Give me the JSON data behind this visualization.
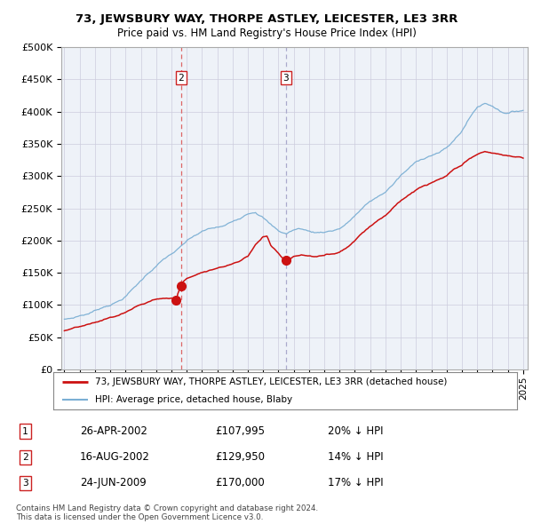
{
  "title": "73, JEWSBURY WAY, THORPE ASTLEY, LEICESTER, LE3 3RR",
  "subtitle": "Price paid vs. HM Land Registry's House Price Index (HPI)",
  "legend_line1": "73, JEWSBURY WAY, THORPE ASTLEY, LEICESTER, LE3 3RR (detached house)",
  "legend_line2": "HPI: Average price, detached house, Blaby",
  "footer1": "Contains HM Land Registry data © Crown copyright and database right 2024.",
  "footer2": "This data is licensed under the Open Government Licence v3.0.",
  "transactions": [
    {
      "num": 1,
      "date": "26-APR-2002",
      "price": "£107,995",
      "hpi": "20% ↓ HPI",
      "year": 2002.32,
      "show_in_chart": false
    },
    {
      "num": 2,
      "date": "16-AUG-2002",
      "price": "£129,950",
      "hpi": "14% ↓ HPI",
      "year": 2002.63,
      "show_in_chart": true,
      "dashed": "red"
    },
    {
      "num": 3,
      "date": "24-JUN-2009",
      "price": "£170,000",
      "hpi": "17% ↓ HPI",
      "year": 2009.48,
      "show_in_chart": true,
      "dashed": "gray"
    }
  ],
  "hpi_color": "#7bafd4",
  "price_color": "#cc1111",
  "dashed_red_color": "#dd6666",
  "dashed_gray_color": "#aaaacc",
  "plot_bg": "#eef2f8",
  "grid_color": "#ccccdd",
  "ylim": [
    0,
    500000
  ],
  "xlim_start": 1994.8,
  "xlim_end": 2025.3,
  "yticks": [
    0,
    50000,
    100000,
    150000,
    200000,
    250000,
    300000,
    350000,
    400000,
    450000,
    500000
  ],
  "xticks": [
    1995,
    1996,
    1997,
    1998,
    1999,
    2000,
    2001,
    2002,
    2003,
    2004,
    2005,
    2006,
    2007,
    2008,
    2009,
    2010,
    2011,
    2012,
    2013,
    2014,
    2015,
    2016,
    2017,
    2018,
    2019,
    2020,
    2021,
    2022,
    2023,
    2024,
    2025
  ],
  "hpi_key_points": [
    [
      1995.0,
      78000
    ],
    [
      1995.5,
      80000
    ],
    [
      1996.0,
      84000
    ],
    [
      1996.5,
      87000
    ],
    [
      1997.0,
      92000
    ],
    [
      1997.5,
      98000
    ],
    [
      1998.0,
      103000
    ],
    [
      1998.5,
      108000
    ],
    [
      1999.0,
      116000
    ],
    [
      1999.5,
      128000
    ],
    [
      2000.0,
      140000
    ],
    [
      2000.5,
      153000
    ],
    [
      2001.0,
      164000
    ],
    [
      2001.5,
      174000
    ],
    [
      2002.0,
      182000
    ],
    [
      2002.5,
      190000
    ],
    [
      2003.0,
      200000
    ],
    [
      2003.5,
      208000
    ],
    [
      2004.0,
      214000
    ],
    [
      2004.5,
      218000
    ],
    [
      2005.0,
      220000
    ],
    [
      2005.5,
      222000
    ],
    [
      2006.0,
      228000
    ],
    [
      2006.5,
      235000
    ],
    [
      2007.0,
      244000
    ],
    [
      2007.5,
      248000
    ],
    [
      2008.0,
      240000
    ],
    [
      2008.5,
      228000
    ],
    [
      2009.0,
      218000
    ],
    [
      2009.5,
      214000
    ],
    [
      2010.0,
      220000
    ],
    [
      2010.5,
      222000
    ],
    [
      2011.0,
      218000
    ],
    [
      2011.5,
      216000
    ],
    [
      2012.0,
      218000
    ],
    [
      2012.5,
      220000
    ],
    [
      2013.0,
      224000
    ],
    [
      2013.5,
      232000
    ],
    [
      2014.0,
      244000
    ],
    [
      2014.5,
      255000
    ],
    [
      2015.0,
      265000
    ],
    [
      2015.5,
      272000
    ],
    [
      2016.0,
      280000
    ],
    [
      2016.5,
      292000
    ],
    [
      2017.0,
      305000
    ],
    [
      2017.5,
      315000
    ],
    [
      2018.0,
      325000
    ],
    [
      2018.5,
      332000
    ],
    [
      2019.0,
      338000
    ],
    [
      2019.5,
      342000
    ],
    [
      2020.0,
      348000
    ],
    [
      2020.5,
      360000
    ],
    [
      2021.0,
      375000
    ],
    [
      2021.5,
      395000
    ],
    [
      2022.0,
      412000
    ],
    [
      2022.5,
      418000
    ],
    [
      2023.0,
      415000
    ],
    [
      2023.5,
      408000
    ],
    [
      2024.0,
      405000
    ],
    [
      2024.5,
      407000
    ],
    [
      2025.0,
      410000
    ]
  ],
  "red_key_points": [
    [
      1995.0,
      60000
    ],
    [
      1995.5,
      62000
    ],
    [
      1996.0,
      65000
    ],
    [
      1996.5,
      67000
    ],
    [
      1997.0,
      70000
    ],
    [
      1997.5,
      74000
    ],
    [
      1998.0,
      78000
    ],
    [
      1998.5,
      81000
    ],
    [
      1999.0,
      86000
    ],
    [
      1999.5,
      92000
    ],
    [
      2000.0,
      97000
    ],
    [
      2000.5,
      102000
    ],
    [
      2001.0,
      106000
    ],
    [
      2001.5,
      107500
    ],
    [
      2002.32,
      107995
    ],
    [
      2002.63,
      129950
    ],
    [
      2003.0,
      138000
    ],
    [
      2003.5,
      144000
    ],
    [
      2004.0,
      150000
    ],
    [
      2004.5,
      154000
    ],
    [
      2005.0,
      157000
    ],
    [
      2005.5,
      160000
    ],
    [
      2006.0,
      165000
    ],
    [
      2006.5,
      170000
    ],
    [
      2007.0,
      178000
    ],
    [
      2007.5,
      196000
    ],
    [
      2008.0,
      208000
    ],
    [
      2008.25,
      209000
    ],
    [
      2008.5,
      195000
    ],
    [
      2009.0,
      183000
    ],
    [
      2009.48,
      170000
    ],
    [
      2010.0,
      178000
    ],
    [
      2010.5,
      181000
    ],
    [
      2011.0,
      179000
    ],
    [
      2011.5,
      178000
    ],
    [
      2012.0,
      180000
    ],
    [
      2012.5,
      182000
    ],
    [
      2013.0,
      186000
    ],
    [
      2013.5,
      194000
    ],
    [
      2014.0,
      205000
    ],
    [
      2014.5,
      218000
    ],
    [
      2015.0,
      228000
    ],
    [
      2015.5,
      238000
    ],
    [
      2016.0,
      246000
    ],
    [
      2016.5,
      258000
    ],
    [
      2017.0,
      268000
    ],
    [
      2017.5,
      277000
    ],
    [
      2018.0,
      285000
    ],
    [
      2018.5,
      291000
    ],
    [
      2019.0,
      295000
    ],
    [
      2019.5,
      300000
    ],
    [
      2020.0,
      305000
    ],
    [
      2020.5,
      315000
    ],
    [
      2021.0,
      320000
    ],
    [
      2021.5,
      330000
    ],
    [
      2022.0,
      335000
    ],
    [
      2022.5,
      340000
    ],
    [
      2023.0,
      338000
    ],
    [
      2023.5,
      335000
    ],
    [
      2024.0,
      333000
    ],
    [
      2024.5,
      332000
    ],
    [
      2025.0,
      330000
    ]
  ]
}
